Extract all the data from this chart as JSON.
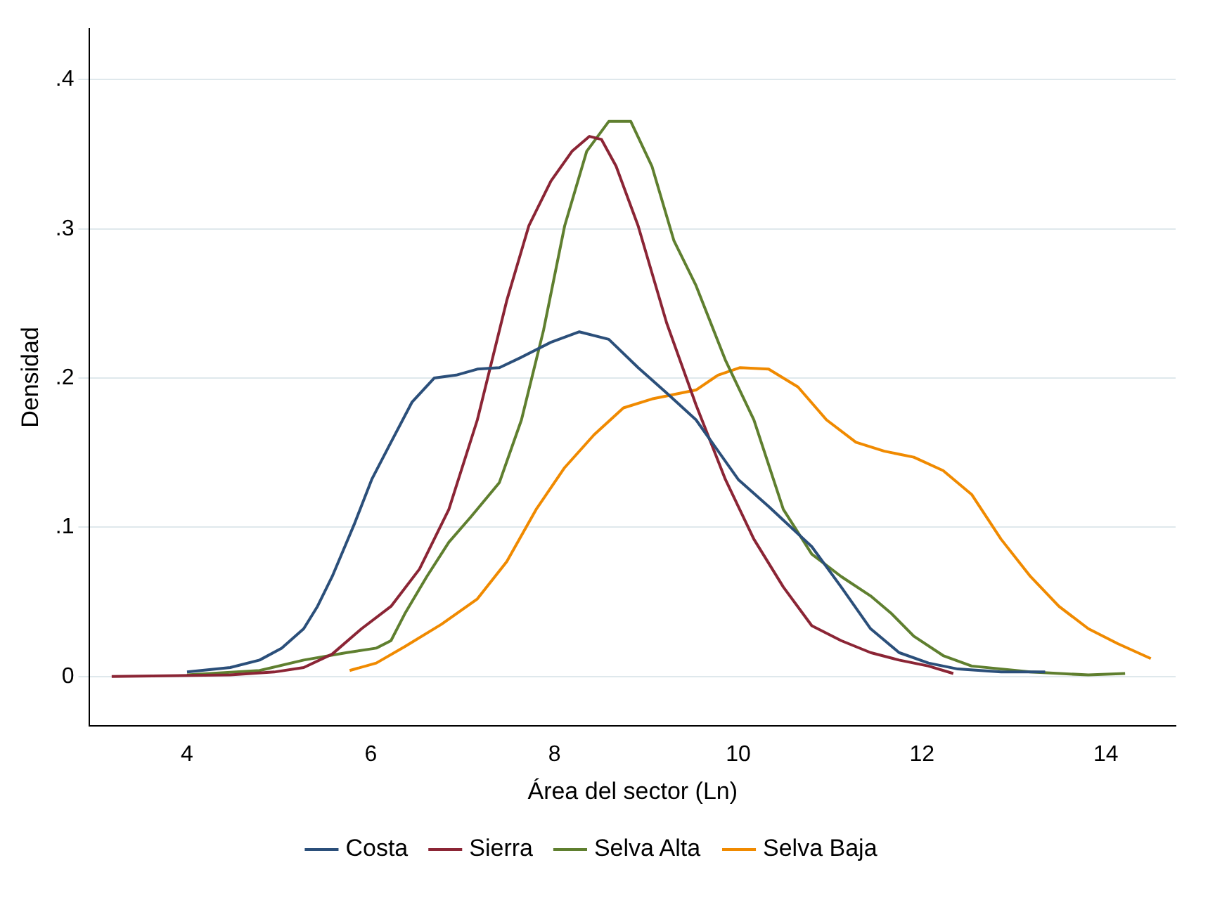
{
  "chart_data": {
    "type": "line",
    "xlabel": "Área del sector (Ln)",
    "ylabel": "Densidad",
    "xlim": [
      2.94,
      14.76
    ],
    "ylim": [
      -0.033,
      0.434
    ],
    "xticks": [
      4,
      6,
      8,
      10,
      12,
      14
    ],
    "yticks": [
      0,
      {
        "value": 0.1,
        "label": ".1"
      },
      {
        "value": 0.2,
        "label": ".2"
      },
      {
        "value": 0.3,
        "label": ".3"
      },
      {
        "value": 0.4,
        "label": ".4"
      }
    ],
    "grid": "y",
    "legend": "bottom",
    "marker": "none",
    "line_style": "solid",
    "series": [
      {
        "name": "Costa",
        "color": "#2b4f7a",
        "x": [
          4.0,
          4.47,
          4.79,
          5.03,
          5.27,
          5.42,
          5.58,
          5.82,
          6.01,
          6.22,
          6.45,
          6.69,
          6.93,
          7.16,
          7.4,
          7.64,
          7.96,
          8.27,
          8.59,
          8.91,
          9.22,
          9.54,
          10.0,
          10.33,
          10.8,
          11.12,
          11.44,
          11.75,
          12.07,
          12.39,
          12.86,
          13.34
        ],
        "values": [
          0.003,
          0.006,
          0.011,
          0.019,
          0.032,
          0.047,
          0.067,
          0.102,
          0.132,
          0.157,
          0.184,
          0.2,
          0.202,
          0.206,
          0.207,
          0.214,
          0.224,
          0.231,
          0.226,
          0.207,
          0.19,
          0.172,
          0.132,
          0.114,
          0.087,
          0.06,
          0.032,
          0.016,
          0.009,
          0.005,
          0.003,
          0.003
        ]
      },
      {
        "name": "Sierra",
        "color": "#8b2535",
        "x": [
          3.18,
          4.47,
          4.95,
          5.27,
          5.58,
          5.9,
          6.22,
          6.53,
          6.85,
          7.16,
          7.48,
          7.72,
          7.96,
          8.19,
          8.38,
          8.51,
          8.67,
          8.91,
          9.22,
          9.54,
          9.86,
          10.17,
          10.49,
          10.8,
          11.12,
          11.44,
          11.75,
          12.07,
          12.34
        ],
        "values": [
          0,
          0.001,
          0.003,
          0.006,
          0.015,
          0.032,
          0.047,
          0.072,
          0.112,
          0.172,
          0.252,
          0.302,
          0.332,
          0.352,
          0.362,
          0.36,
          0.342,
          0.302,
          0.237,
          0.182,
          0.132,
          0.092,
          0.06,
          0.034,
          0.024,
          0.016,
          0.011,
          0.007,
          0.002
        ]
      },
      {
        "name": "Selva Alta",
        "color": "#5f7f2f",
        "x": [
          4.0,
          4.79,
          5.27,
          5.74,
          6.06,
          6.22,
          6.37,
          6.61,
          6.85,
          7.09,
          7.4,
          7.64,
          7.88,
          8.11,
          8.35,
          8.59,
          8.83,
          9.06,
          9.3,
          9.54,
          9.86,
          10.17,
          10.49,
          10.8,
          11.12,
          11.44,
          11.67,
          11.91,
          12.23,
          12.54,
          13.18,
          13.81,
          14.21
        ],
        "values": [
          0.001,
          0.004,
          0.011,
          0.016,
          0.019,
          0.024,
          0.042,
          0.067,
          0.09,
          0.107,
          0.13,
          0.172,
          0.232,
          0.302,
          0.352,
          0.372,
          0.372,
          0.342,
          0.292,
          0.262,
          0.212,
          0.172,
          0.112,
          0.082,
          0.067,
          0.054,
          0.042,
          0.027,
          0.014,
          0.007,
          0.003,
          0.001,
          0.002
        ]
      },
      {
        "name": "Selva Baja",
        "color": "#f08a00",
        "x": [
          5.77,
          6.06,
          6.37,
          6.77,
          7.16,
          7.48,
          7.8,
          8.11,
          8.43,
          8.75,
          9.06,
          9.54,
          9.78,
          10.02,
          10.33,
          10.65,
          10.96,
          11.28,
          11.59,
          11.91,
          12.23,
          12.54,
          12.86,
          13.18,
          13.49,
          13.81,
          14.13,
          14.49
        ],
        "values": [
          0.004,
          0.009,
          0.02,
          0.035,
          0.052,
          0.077,
          0.112,
          0.14,
          0.162,
          0.18,
          0.186,
          0.192,
          0.202,
          0.207,
          0.206,
          0.194,
          0.172,
          0.157,
          0.151,
          0.147,
          0.138,
          0.122,
          0.092,
          0.067,
          0.047,
          0.032,
          0.022,
          0.012
        ]
      }
    ]
  }
}
